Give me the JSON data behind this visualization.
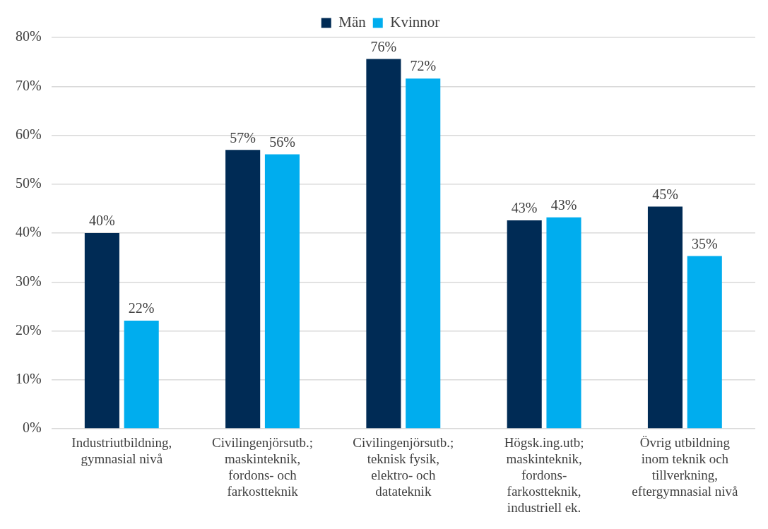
{
  "chart_data": {
    "type": "bar",
    "categories": [
      "Industriutbildning, gymnasial nivå",
      "Civilingenjörsutb.; maskinteknik, fordons- och farkostteknik",
      "Civilingenjörsutb.; teknisk fysik, elektro- och datateknik",
      "Högsk.ing.utb; maskinteknik, fordons- farkostteknik, industriell ek.",
      "Övrig utbildning inom teknik och tillverkning, eftergymnasial nivå"
    ],
    "series": [
      {
        "name": "Män",
        "color": "#002b55",
        "values": [
          40,
          57,
          75.6,
          42.6,
          45.4
        ],
        "value_labels": [
          "40%",
          "57%",
          "76%",
          "43%",
          "45%"
        ]
      },
      {
        "name": "Kvinnor",
        "color": "#00adee",
        "values": [
          22.1,
          56.1,
          71.6,
          43.2,
          35.3
        ],
        "value_labels": [
          "22%",
          "56%",
          "72%",
          "43%",
          "35%"
        ]
      }
    ],
    "ylim": [
      0,
      80
    ],
    "yticks": [
      {
        "value": 0,
        "label": "0%"
      },
      {
        "value": 10,
        "label": "10%"
      },
      {
        "value": 20,
        "label": "20%"
      },
      {
        "value": 30,
        "label": "30%"
      },
      {
        "value": 40,
        "label": "40%"
      },
      {
        "value": 50,
        "label": "50%"
      },
      {
        "value": 60,
        "label": "60%"
      },
      {
        "value": 70,
        "label": "70%"
      },
      {
        "value": 80,
        "label": "80%"
      }
    ],
    "grid": "y",
    "legend": "top"
  }
}
